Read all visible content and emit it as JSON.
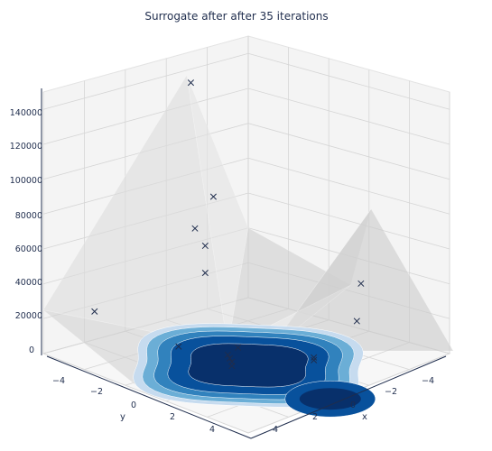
{
  "chart_data": {
    "type": "surface3d",
    "title": "Surrogate after after 35 iterations",
    "xlabel": "x",
    "ylabel": "y",
    "zlabel": "",
    "xlim": [
      -5,
      5
    ],
    "ylim": [
      -5,
      5
    ],
    "zlim": [
      0,
      150000
    ],
    "x_ticks": [
      "4",
      "2",
      "0",
      "−2",
      "−4"
    ],
    "y_ticks": [
      "−4",
      "−2",
      "0",
      "2",
      "4"
    ],
    "z_ticks": [
      "0",
      "20000",
      "40000",
      "60000",
      "80000",
      "100000",
      "120000",
      "140000"
    ],
    "z_tick_values": [
      0,
      20000,
      40000,
      60000,
      80000,
      100000,
      120000,
      140000
    ],
    "grid": true,
    "surface_color": "#d9d9d9",
    "contour_colormap": [
      "#c6dbef",
      "#6baed6",
      "#3182bd",
      "#08519c",
      "#08306b"
    ],
    "marker": "x",
    "marker_color": "#1f2d4d",
    "observations": [
      {
        "x": -1.2,
        "y": -4.0,
        "z": 140000
      },
      {
        "x": -1.8,
        "y": -3.5,
        "z": 75000
      },
      {
        "x": -0.6,
        "y": -3.2,
        "z": 62000
      },
      {
        "x": -0.9,
        "y": -3.0,
        "z": 52000
      },
      {
        "x": -0.7,
        "y": -2.8,
        "z": 38000
      },
      {
        "x": -4.5,
        "y": 1.0,
        "z": 37000
      },
      {
        "x": -3.8,
        "y": 1.5,
        "z": 20000
      },
      {
        "x": 3.0,
        "y": -4.5,
        "z": 20000
      },
      {
        "x": -0.5,
        "y": -1.0,
        "z": 4000
      },
      {
        "x": 0.2,
        "y": -0.8,
        "z": 3000
      },
      {
        "x": 0.4,
        "y": -0.5,
        "z": 3000
      },
      {
        "x": 0.6,
        "y": -0.2,
        "z": 3000
      },
      {
        "x": 0.9,
        "y": 0.1,
        "z": 3000
      },
      {
        "x": -2.0,
        "y": 1.2,
        "z": 2000
      },
      {
        "x": -2.2,
        "y": 1.0,
        "z": 2000
      },
      {
        "x": 0.8,
        "y": -2.6,
        "z": 1500
      }
    ]
  }
}
